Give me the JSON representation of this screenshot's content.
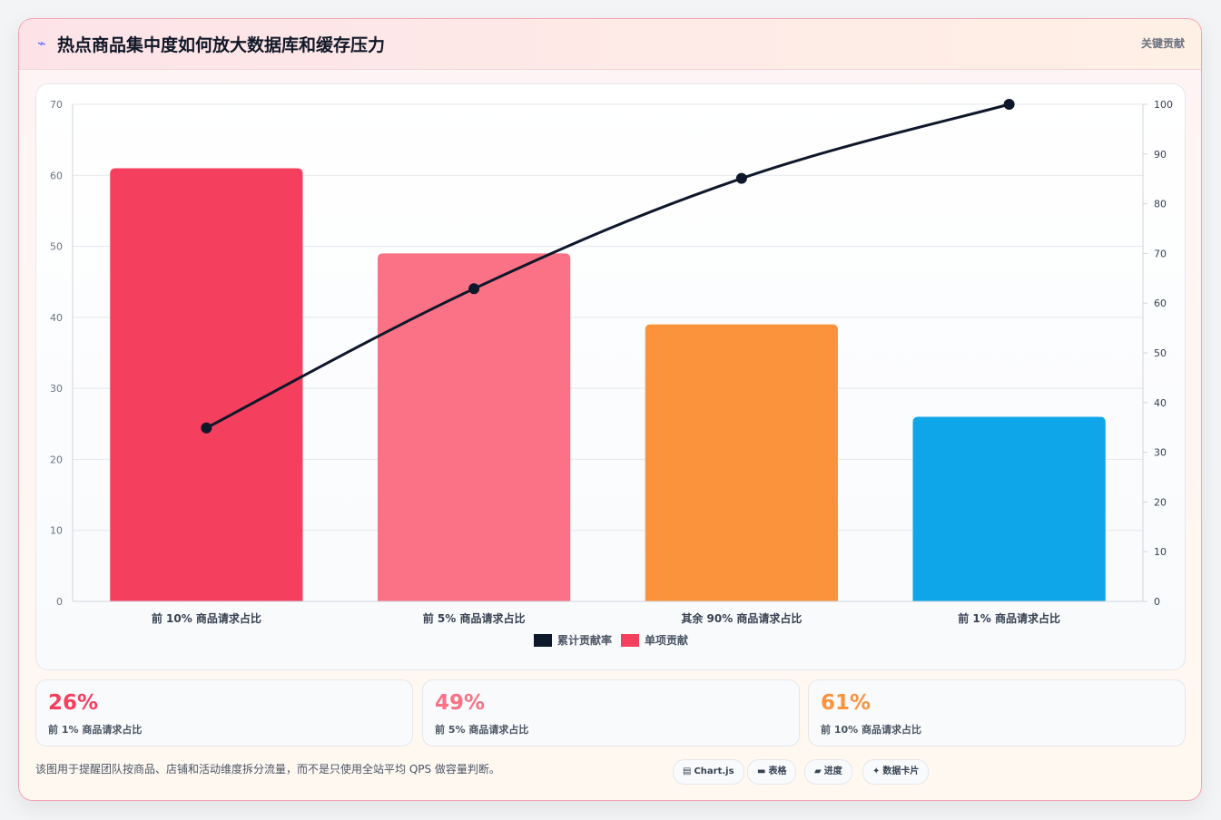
{
  "header": {
    "icon": "line-chart-icon",
    "title": "热点商品集中度如何放大数据库和缓存压力",
    "tag": "关键贡献"
  },
  "chart_data": {
    "type": "bar",
    "categories": [
      "前 10% 商品请求占比",
      "前 5% 商品请求占比",
      "其余 90% 商品请求占比",
      "前 1% 商品请求占比"
    ],
    "series": [
      {
        "name": "单项贡献",
        "type": "bar",
        "axis": "left",
        "values": [
          61,
          49,
          39,
          26
        ],
        "colors": [
          "#f43f5e",
          "#fb7185",
          "#fb923c",
          "#0ea5e9"
        ]
      },
      {
        "name": "累计贡献率",
        "type": "line",
        "axis": "right",
        "values": [
          34.9,
          62.9,
          85.1,
          100
        ],
        "color": "#0f172a"
      }
    ],
    "ylim": [
      0,
      70
    ],
    "y_ticks": [
      "0",
      "10",
      "20",
      "30",
      "40",
      "50",
      "60",
      "70"
    ],
    "y2lim": [
      0,
      100
    ],
    "y2_ticks": [
      "0",
      "10",
      "20",
      "30",
      "40",
      "50",
      "60",
      "70",
      "80",
      "90",
      "100"
    ],
    "legend": {
      "position": "bottom",
      "items": [
        {
          "label": "累计贡献率",
          "color": "#0f172a"
        },
        {
          "label": "单项贡献",
          "color": "#f43f5e"
        }
      ]
    },
    "grid": true
  },
  "stats": [
    {
      "value": "26%",
      "label": "前 1% 商品请求占比",
      "color": "#f43f5e"
    },
    {
      "value": "49%",
      "label": "前 5% 商品请求占比",
      "color": "#fb7185"
    },
    {
      "value": "61%",
      "label": "前 10% 商品请求占比",
      "color": "#fb923c"
    }
  ],
  "footer": {
    "note": "该图用于提醒团队按商品、店铺和活动维度拆分流量，而不是只使用全站平均 QPS 做容量判断。",
    "chips": [
      {
        "icon": "chart-icon",
        "glyph": "▤",
        "label": "Chart.js"
      },
      {
        "icon": "table-icon",
        "glyph": "▬",
        "label": "表格"
      },
      {
        "icon": "progress-icon",
        "glyph": "▰",
        "label": "进度"
      },
      {
        "icon": "sparkle-icon",
        "glyph": "✦",
        "label": "数据卡片"
      }
    ]
  }
}
